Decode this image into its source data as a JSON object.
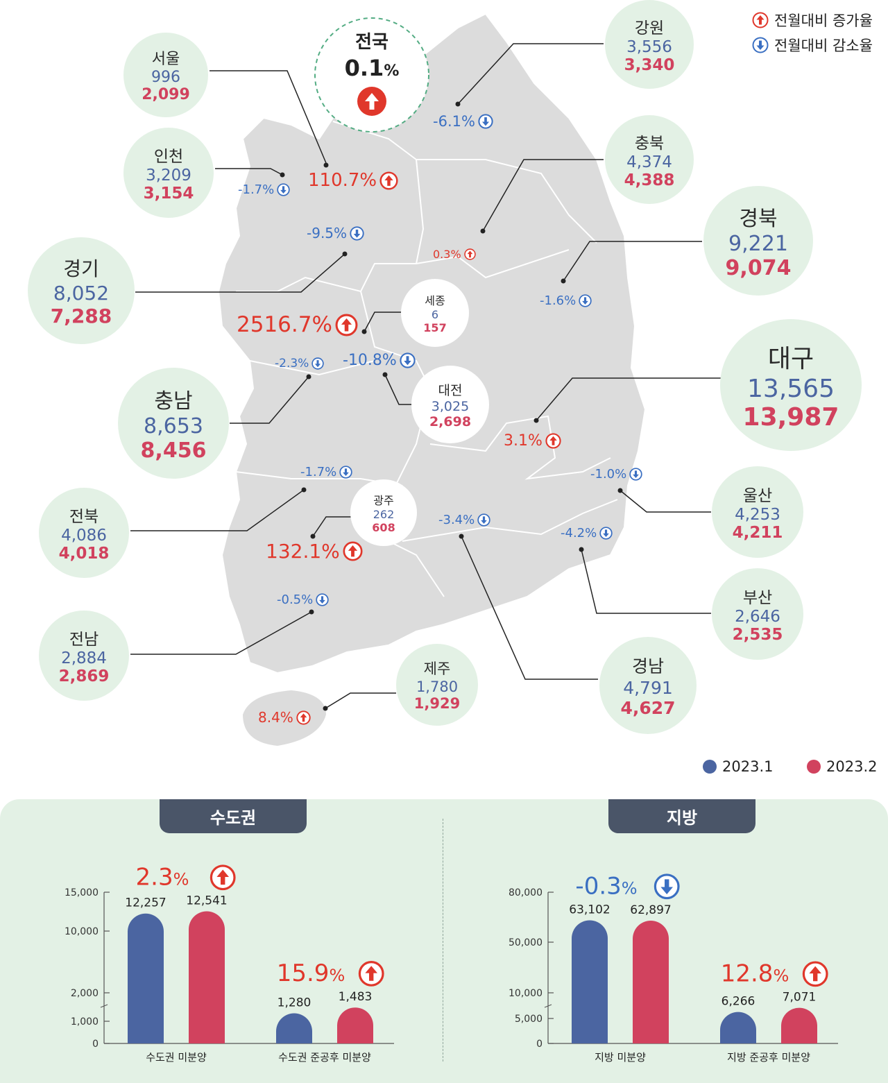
{
  "legend": {
    "increase": "전월대비 증가율",
    "decrease": "전월대비 감소율",
    "series1": "2023.1",
    "series2": "2023.2",
    "series1_color": "#4b65a1",
    "series2_color": "#d1425e"
  },
  "national": {
    "name": "전국",
    "rate": "0.1",
    "rate_unit": "%",
    "direction": "up"
  },
  "regions": [
    {
      "id": "seoul",
      "name": "서울",
      "jan": "996",
      "feb": "2,099",
      "rate": "110.7%",
      "direction": "up"
    },
    {
      "id": "incheon",
      "name": "인천",
      "jan": "3,209",
      "feb": "3,154",
      "rate": "-1.7%",
      "direction": "down"
    },
    {
      "id": "gyeonggi",
      "name": "경기",
      "jan": "8,052",
      "feb": "7,288",
      "rate": "-9.5%",
      "direction": "down"
    },
    {
      "id": "gangwon",
      "name": "강원",
      "jan": "3,556",
      "feb": "3,340",
      "rate": "-6.1%",
      "direction": "down"
    },
    {
      "id": "chungbuk",
      "name": "충북",
      "jan": "4,374",
      "feb": "4,388",
      "rate": "0.3%",
      "direction": "up"
    },
    {
      "id": "gyeongbuk",
      "name": "경북",
      "jan": "9,221",
      "feb": "9,074",
      "rate": "-1.6%",
      "direction": "down"
    },
    {
      "id": "sejong",
      "name": "세종",
      "jan": "6",
      "feb": "157",
      "rate": "2516.7%",
      "direction": "up"
    },
    {
      "id": "daejeon",
      "name": "대전",
      "jan": "3,025",
      "feb": "2,698",
      "rate": "-10.8%",
      "direction": "down"
    },
    {
      "id": "chungnam",
      "name": "충남",
      "jan": "8,653",
      "feb": "8,456",
      "rate": "-2.3%",
      "direction": "down"
    },
    {
      "id": "daegu",
      "name": "대구",
      "jan": "13,565",
      "feb": "13,987",
      "rate": "3.1%",
      "direction": "up"
    },
    {
      "id": "jeonbuk",
      "name": "전북",
      "jan": "4,086",
      "feb": "4,018",
      "rate": "-1.7%",
      "direction": "down"
    },
    {
      "id": "gwangju",
      "name": "광주",
      "jan": "262",
      "feb": "608",
      "rate": "132.1%",
      "direction": "up"
    },
    {
      "id": "ulsan",
      "name": "울산",
      "jan": "4,253",
      "feb": "4,211",
      "rate": "-1.0%",
      "direction": "down"
    },
    {
      "id": "gyeongnam",
      "name": "경남",
      "jan": "4,791",
      "feb": "4,627",
      "rate": "-3.4%",
      "direction": "down"
    },
    {
      "id": "busan",
      "name": "부산",
      "jan": "2,646",
      "feb": "2,535",
      "rate": "-4.2%",
      "direction": "down"
    },
    {
      "id": "jeonnam",
      "name": "전남",
      "jan": "2,884",
      "feb": "2,869",
      "rate": "-0.5%",
      "direction": "down"
    },
    {
      "id": "jeju",
      "name": "제주",
      "jan": "1,780",
      "feb": "1,929",
      "rate": "8.4%",
      "direction": "up"
    }
  ],
  "panels": [
    {
      "tab": "수도권"
    },
    {
      "tab": "지방"
    }
  ],
  "chart_data": [
    {
      "type": "bar",
      "title": "수도권",
      "categories": [
        "수도권 미분양",
        "수도권 준공후 미분양"
      ],
      "series": [
        {
          "name": "2023.1",
          "values": [
            12257,
            1280
          ],
          "labels": [
            "12,257",
            "1,280"
          ]
        },
        {
          "name": "2023.2",
          "values": [
            12541,
            1483
          ],
          "labels": [
            "12,541",
            "1,483"
          ]
        }
      ],
      "change": [
        {
          "value": "2.3",
          "unit": "%",
          "direction": "up"
        },
        {
          "value": "15.9",
          "unit": "%",
          "direction": "up"
        }
      ],
      "yticks": [
        0,
        1000,
        2000,
        10000,
        15000
      ],
      "ytick_labels": [
        "0",
        "1,000",
        "2,000",
        "10,000",
        "15,000"
      ],
      "ylim": [
        0,
        15000
      ],
      "yscale": "broken"
    },
    {
      "type": "bar",
      "title": "지방",
      "categories": [
        "지방 미분양",
        "지방 준공후 미분양"
      ],
      "series": [
        {
          "name": "2023.1",
          "values": [
            63102,
            6266
          ],
          "labels": [
            "63,102",
            "6,266"
          ]
        },
        {
          "name": "2023.2",
          "values": [
            62897,
            7071
          ],
          "labels": [
            "62,897",
            "7,071"
          ]
        }
      ],
      "change": [
        {
          "value": "-0.3",
          "unit": "%",
          "direction": "down"
        },
        {
          "value": "12.8",
          "unit": "%",
          "direction": "up"
        }
      ],
      "yticks": [
        0,
        5000,
        10000,
        50000,
        80000
      ],
      "ytick_labels": [
        "0",
        "5,000",
        "10,000",
        "50,000",
        "80,000"
      ],
      "ylim": [
        0,
        80000
      ],
      "yscale": "broken"
    }
  ]
}
